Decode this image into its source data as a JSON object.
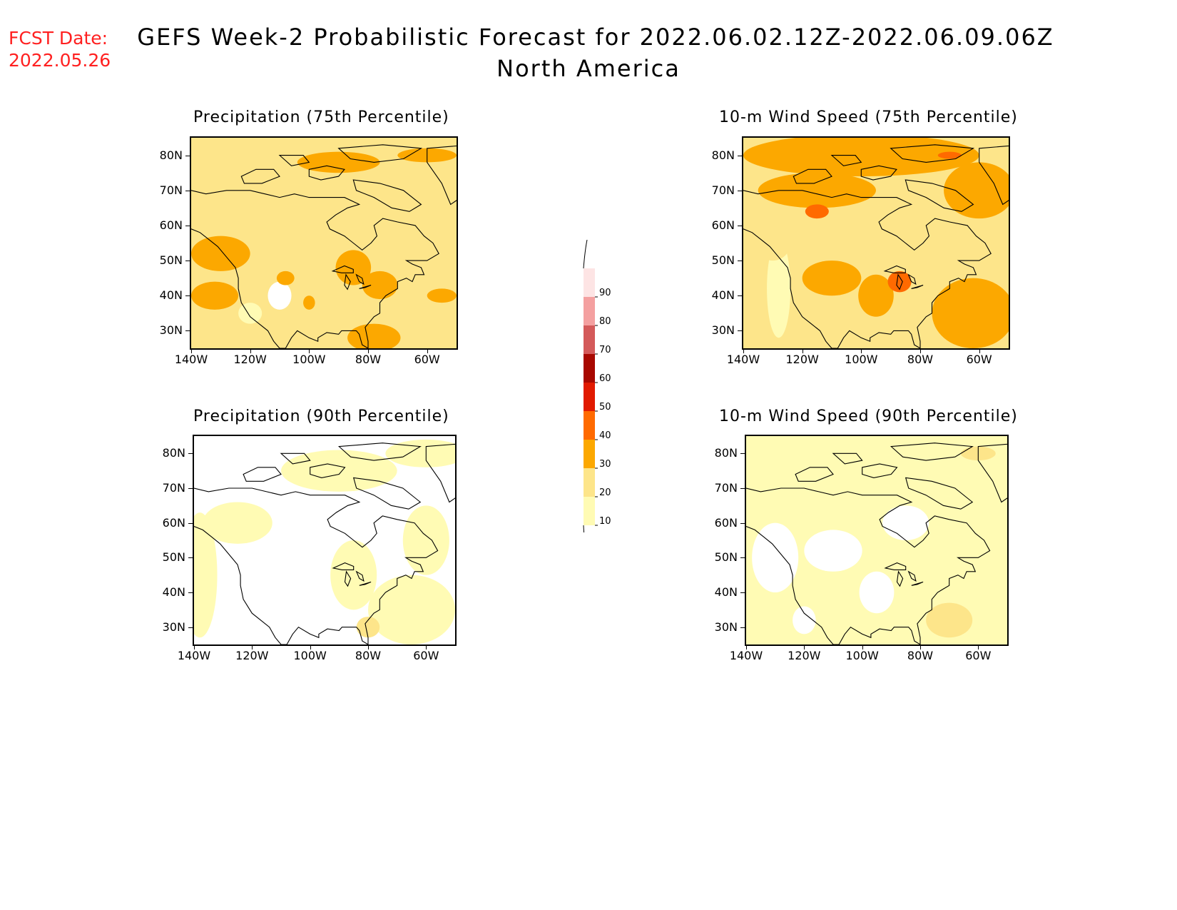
{
  "header": {
    "fcst_label": "FCST Date:",
    "fcst_date": "2022.05.26",
    "title_line1": "GEFS Week-2 Probabilistic Forecast for 2022.06.02.12Z-2022.06.09.06Z",
    "title_line2": "North America"
  },
  "panels": [
    {
      "id": "precip75",
      "title": "Precipitation (75th Percentile)",
      "base_level": 20
    },
    {
      "id": "precip90",
      "title": "Precipitation (90th Percentile)",
      "base_level": 0
    },
    {
      "id": "wind75",
      "title": "10-m Wind Speed (75th Percentile)",
      "base_level": 20
    },
    {
      "id": "wind90",
      "title": "10-m Wind Speed (90th Percentile)",
      "base_level": 10
    }
  ],
  "axes": {
    "lat_labels": [
      "80N",
      "70N",
      "60N",
      "50N",
      "40N",
      "30N"
    ],
    "lon_labels": [
      "140W",
      "120W",
      "100W",
      "80W",
      "60W"
    ],
    "lat_range": [
      25,
      85
    ],
    "lon_range": [
      -140,
      -50
    ]
  },
  "colorbar": {
    "levels": [
      "10",
      "20",
      "30",
      "40",
      "50",
      "60",
      "70",
      "80",
      "90"
    ],
    "colors": [
      "#fffbb4",
      "#fde58a",
      "#fca800",
      "#ff6a00",
      "#e11a00",
      "#a80800",
      "#d45a5a",
      "#f4a0a0",
      "#fde4e4"
    ]
  },
  "colors": {
    "fcst_date": "#ff2020",
    "white_fill": "#ffffff"
  }
}
